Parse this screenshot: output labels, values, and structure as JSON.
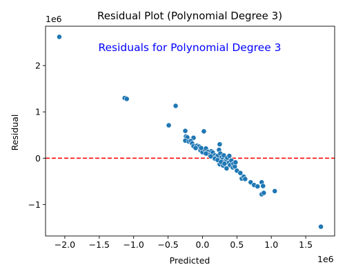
{
  "chart_data": {
    "type": "scatter",
    "title": "Residual Plot (Polynomial Degree 3)",
    "xlabel": "Predicted",
    "ylabel": "Residual",
    "x_offset_label": "1e6",
    "y_offset_label": "1e6",
    "annotation": "Residuals for Polynomial Degree 3",
    "annotation_color": "#0000ff",
    "point_color": "#1f77b4",
    "reference_line": {
      "y": 0,
      "color": "#ff0000",
      "style": "dashed"
    },
    "xlim": [
      -2.28,
      1.92
    ],
    "ylim": [
      -1.68,
      2.85
    ],
    "xticks": [
      {
        "value": -2.0,
        "label": "−2.0"
      },
      {
        "value": -1.5,
        "label": "−1.5"
      },
      {
        "value": -1.0,
        "label": "−1.0"
      },
      {
        "value": -0.5,
        "label": "−0.5"
      },
      {
        "value": 0.0,
        "label": "0.0"
      },
      {
        "value": 0.5,
        "label": "0.5"
      },
      {
        "value": 1.0,
        "label": "1.0"
      },
      {
        "value": 1.5,
        "label": "1.5"
      }
    ],
    "yticks": [
      {
        "value": -1,
        "label": "−1"
      },
      {
        "value": 0,
        "label": "0"
      },
      {
        "value": 1,
        "label": "1"
      },
      {
        "value": 2,
        "label": "2"
      }
    ],
    "grid": false,
    "points": [
      [
        -2.08,
        2.62
      ],
      [
        -1.13,
        1.3
      ],
      [
        -1.1,
        1.28
      ],
      [
        -0.39,
        1.13
      ],
      [
        -0.49,
        0.71
      ],
      [
        -0.25,
        0.59
      ],
      [
        0.02,
        0.58
      ],
      [
        -0.24,
        0.47
      ],
      [
        -0.22,
        0.45
      ],
      [
        -0.13,
        0.44
      ],
      [
        -0.25,
        0.38
      ],
      [
        -0.2,
        0.36
      ],
      [
        -0.17,
        0.37
      ],
      [
        -0.15,
        0.32
      ],
      [
        -0.13,
        0.26
      ],
      [
        -0.08,
        0.27
      ],
      [
        -0.05,
        0.25
      ],
      [
        -0.1,
        0.22
      ],
      [
        -0.03,
        0.17
      ],
      [
        0.0,
        0.13
      ],
      [
        0.03,
        0.19
      ],
      [
        0.05,
        0.21
      ],
      [
        0.08,
        0.14
      ],
      [
        0.1,
        0.08
      ],
      [
        0.13,
        0.15
      ],
      [
        0.15,
        0.12
      ],
      [
        0.18,
        0.06
      ],
      [
        0.2,
        0.02
      ],
      [
        0.22,
        0.05
      ],
      [
        0.24,
        0.18
      ],
      [
        0.25,
        0.3
      ],
      [
        0.26,
        0.1
      ],
      [
        0.28,
        0.02
      ],
      [
        0.3,
        -0.02
      ],
      [
        0.31,
        0.06
      ],
      [
        0.33,
        -0.06
      ],
      [
        0.35,
        -0.03
      ],
      [
        0.36,
        0.01
      ],
      [
        0.38,
        -0.1
      ],
      [
        0.39,
        0.05
      ],
      [
        0.4,
        -0.15
      ],
      [
        0.42,
        -0.05
      ],
      [
        0.44,
        -0.2
      ],
      [
        0.45,
        -0.12
      ],
      [
        0.47,
        -0.18
      ],
      [
        0.48,
        -0.09
      ],
      [
        0.25,
        -0.13
      ],
      [
        0.3,
        -0.16
      ],
      [
        0.35,
        -0.22
      ],
      [
        0.5,
        -0.27
      ],
      [
        0.55,
        -0.32
      ],
      [
        0.57,
        -0.44
      ],
      [
        0.6,
        -0.4
      ],
      [
        0.62,
        -0.45
      ],
      [
        0.7,
        -0.52
      ],
      [
        0.75,
        -0.58
      ],
      [
        0.8,
        -0.61
      ],
      [
        0.86,
        -0.52
      ],
      [
        0.88,
        -0.6
      ],
      [
        0.86,
        -0.78
      ],
      [
        0.89,
        -0.75
      ],
      [
        1.05,
        -0.71
      ],
      [
        1.72,
        -1.48
      ],
      [
        0.12,
        0.04
      ],
      [
        0.18,
        -0.01
      ],
      [
        0.22,
        -0.04
      ],
      [
        0.27,
        -0.08
      ],
      [
        0.32,
        -0.12
      ],
      [
        0.05,
        0.1
      ],
      [
        -0.02,
        0.22
      ]
    ]
  }
}
